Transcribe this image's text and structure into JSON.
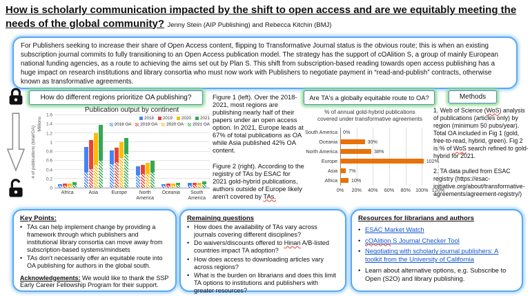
{
  "title": {
    "heading": "How is scholarly communication impacted by the shift to open access and are we equitably meeting the needs of the global community?",
    "authors": "Jenny Stein (AIP Publishing) and Rebecca Kitchin (BMJ)"
  },
  "intro": {
    "text": "For Publishers seeking to increase their share of Open Access content, flipping to Transformative Journal status is the obvious route; this is when an existing subscription journal commits to fully transitioning to an Open Access publication model. The strategy has the support of cOAlition S, a group of mainly European national funding agencies, as a route to achieving the aims set out by Plan S. This shift from subscription-based reading towards open access publishing has a huge impact on research institutions and library consortia who must now work with Publishers to negotiate payment in “read-and-publish” contracts, otherwise known as transformative agreements."
  },
  "side_icons": {
    "top": "lock-closed-icon",
    "middle": "down-arrow-icon",
    "bottom": "lock-open-icon"
  },
  "section_headers": {
    "fig1": "How do different regions prioritize OA publishing?",
    "fig2": "Are TA's a globally equitable route to OA?",
    "methods": "Methods"
  },
  "chart_data": [
    {
      "type": "bar",
      "title": "Publication output by continent",
      "ylabel": "# of publications (total/OA)",
      "ylabel2": "Millions",
      "ylim": [
        0,
        1.6
      ],
      "yticks": [
        "0",
        "0.2",
        "0.4",
        "0.6",
        "0.8",
        "1",
        "1.2",
        "1.4",
        "1.6"
      ],
      "categories": [
        "Africa",
        "Asia",
        "Europe",
        "North America",
        "Oceania",
        "South America"
      ],
      "series": [
        {
          "name": "2018",
          "color": "#4285F4",
          "totals": [
            0.08,
            0.9,
            0.82,
            0.47,
            0.08,
            0.1
          ],
          "oa": [
            0.04,
            0.34,
            0.52,
            0.27,
            0.04,
            0.05
          ]
        },
        {
          "name": "2019",
          "color": "#EA4335",
          "totals": [
            0.09,
            1.05,
            0.89,
            0.51,
            0.09,
            0.11
          ],
          "oa": [
            0.04,
            0.41,
            0.57,
            0.3,
            0.05,
            0.06
          ]
        },
        {
          "name": "2020",
          "color": "#FBBC04",
          "totals": [
            0.09,
            1.21,
            1.01,
            0.55,
            0.09,
            0.11
          ],
          "oa": [
            0.05,
            0.5,
            0.65,
            0.31,
            0.05,
            0.06
          ]
        },
        {
          "name": "2021",
          "color": "#34A853",
          "totals": [
            0.12,
            1.39,
            1.1,
            0.6,
            0.1,
            0.13
          ],
          "oa": [
            0.06,
            0.59,
            0.74,
            0.33,
            0.06,
            0.07
          ]
        }
      ],
      "legend_rows": [
        [
          "2018",
          "2019",
          "2020",
          "2021"
        ],
        [
          "2018 OA",
          "2019 OA",
          "2020 OA",
          "2021 OA"
        ]
      ]
    },
    {
      "type": "bar-horizontal",
      "title_lines": [
        "% of annual gold-hybrid publications",
        "covered under transformative agreements"
      ],
      "categories": [
        "South America",
        "Oceania",
        "North America",
        "Europe",
        "Asia",
        "Africa"
      ],
      "values": [
        0,
        30,
        38,
        102,
        7,
        10
      ],
      "value_labels": [
        "0%",
        "30%",
        "38%",
        "102%",
        "7%",
        "10%"
      ],
      "xlim": [
        0,
        120
      ],
      "xticks": [
        "0%",
        "20%",
        "40%",
        "60%",
        "80%",
        "100%",
        "120%"
      ],
      "bar_color": "#E8710A"
    }
  ],
  "figures": {
    "captions": [
      {
        "segments": [
          {
            "text": "Figure 1 (left). Over the 2018-2021, most regions are publishing nearly half of their papers under an open access option. In 2021, Europe leads at 67% of total publications as OA while Asia published 42% OA content."
          }
        ]
      },
      {
        "segments": [
          {
            "text": "Figure 2 (right). According to the registry of TAs by ESAC for 2021 gold-hybrid publications, authors outside of Europe likely aren't covered by "
          },
          {
            "text": "TAs.",
            "squiggle": true
          }
        ]
      }
    ]
  },
  "methods": {
    "paragraphs": [
      [
        {
          "text": "1. Web of Science ("
        },
        {
          "text": "WoS",
          "squiggle": true
        },
        {
          "text": ") analysis of publications (articles only) by region (minimum 50 pubs/year). Total OA included in Fig 1 (gold, free-to-read, hybrid, green). Fig 2 is % of "
        },
        {
          "text": "WoS",
          "squiggle": true
        },
        {
          "text": " search refined to gold-hybrid for 2021."
        }
      ],
      [
        {
          "text": "2. TA data pulled from ESAC registry (https://esac-initiative.org/about/transformative-agreements/agreement-registry/)"
        }
      ]
    ]
  },
  "key_points": {
    "heading": "Key Points:",
    "bullets": [
      "TAs can help implement change by providing a framework through which publishers and institutional library consortia can move away from subscription-based systems/mindsets",
      "TAs don't necessarily offer an equitable route into OA publishing for authors in the global south."
    ],
    "ack_heading": "Acknowledgements:",
    "ack_text": " We would like to thank the SSP Early Career Fellowship Program for their support."
  },
  "remaining": {
    "heading": "Remaining questions",
    "bullets": [
      [
        {
          "text": "How does the availability of TAs vary across journals covering different disciplines?"
        }
      ],
      [
        {
          "text": "Do waivers/discounts offered to "
        },
        {
          "text": "Hinari",
          "squiggle": true
        },
        {
          "text": " A/B-listed countries impact TA adoption?"
        }
      ],
      [
        {
          "text": "How does access to downloading articles vary across regions?"
        }
      ],
      [
        {
          "text": "What is the burden on librarians and does this limit TA options to institutions and publishers with greater resources?"
        }
      ]
    ]
  },
  "resources": {
    "heading": "Resources for librarians and authors",
    "links": [
      [
        {
          "text": "ESAC Market Watch"
        }
      ],
      [
        {
          "text": "cOAlition",
          "squiggle": true
        },
        {
          "text": " S Journal Checker Tool"
        }
      ],
      [
        {
          "text": "Negotiating with scholarly journal publishers: A toolkit from the University of California"
        }
      ]
    ],
    "note": "Learn about alternative options, e.g. Subscribe to Open (S2O) and library publishing."
  },
  "colors": {
    "box_border_blue": "#56A8F8",
    "glow_green": "#8FDE8F",
    "bar_orange": "#E8710A",
    "link_blue": "#1155CC"
  }
}
